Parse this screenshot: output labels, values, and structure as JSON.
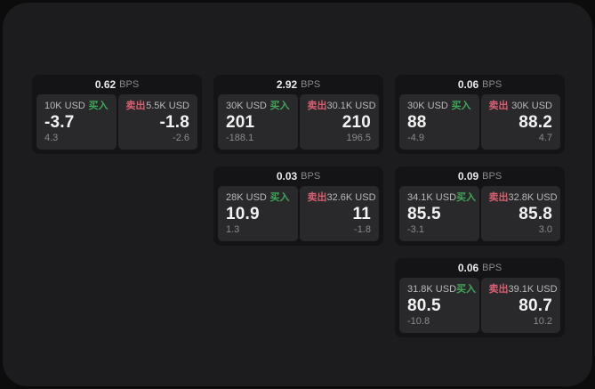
{
  "labels": {
    "bps_unit": "BPS",
    "buy": "买入",
    "sell": "卖出"
  },
  "colors": {
    "backdrop": "#0c0c0c",
    "panel": "#1c1c1e",
    "card": "#141416",
    "tile": "#29292b",
    "buy_accent": "#3fa65a",
    "sell_accent": "#d95f72"
  },
  "cards": [
    {
      "bps": "0.62",
      "buy": {
        "size": "10K USD",
        "price": "-3.7",
        "delta": "4.3"
      },
      "sell": {
        "size": "5.5K USD",
        "price": "-1.8",
        "delta": "-2.6"
      }
    },
    {
      "bps": "2.92",
      "buy": {
        "size": "30K USD",
        "price": "201",
        "delta": "-188.1"
      },
      "sell": {
        "size": "30.1K USD",
        "price": "210",
        "delta": "196.5"
      }
    },
    {
      "bps": "0.06",
      "buy": {
        "size": "30K USD",
        "price": "88",
        "delta": "-4.9"
      },
      "sell": {
        "size": "30K USD",
        "price": "88.2",
        "delta": "4.7"
      }
    },
    {
      "bps": "0.03",
      "buy": {
        "size": "28K USD",
        "price": "10.9",
        "delta": "1.3"
      },
      "sell": {
        "size": "32.6K USD",
        "price": "11",
        "delta": "-1.8"
      }
    },
    {
      "bps": "0.09",
      "buy": {
        "size": "34.1K USD",
        "price": "85.5",
        "delta": "-3.1"
      },
      "sell": {
        "size": "32.8K USD",
        "price": "85.8",
        "delta": "3.0"
      }
    },
    {
      "bps": "0.06",
      "buy": {
        "size": "31.8K USD",
        "price": "80.5",
        "delta": "-10.8"
      },
      "sell": {
        "size": "39.1K USD",
        "price": "80.7",
        "delta": "10.2"
      }
    }
  ]
}
